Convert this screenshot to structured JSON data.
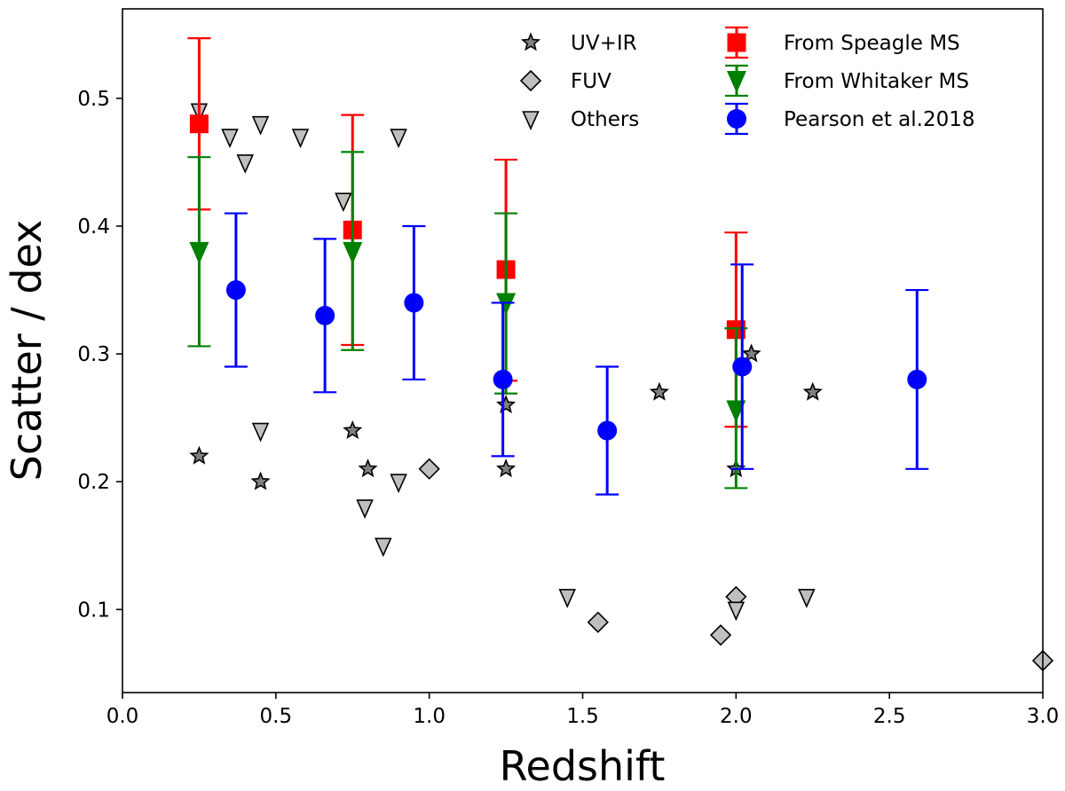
{
  "chart_data": {
    "type": "scatter",
    "title": "",
    "xlabel": "Redshift",
    "ylabel": "Scatter / dex",
    "xlim": [
      0.0,
      3.0
    ],
    "ylim": [
      0.035,
      0.57
    ],
    "xticks": [
      "0.0",
      "0.5",
      "1.0",
      "1.5",
      "2.0",
      "2.5",
      "3.0"
    ],
    "yticks": [
      "0.1",
      "0.2",
      "0.3",
      "0.4",
      "0.5"
    ],
    "legend_location": "top-right",
    "grid": false,
    "series": [
      {
        "name": "UV+IR",
        "marker": "star",
        "color": "#808080",
        "points": [
          {
            "x": 0.25,
            "y": 0.22
          },
          {
            "x": 0.45,
            "y": 0.2
          },
          {
            "x": 0.75,
            "y": 0.24
          },
          {
            "x": 0.8,
            "y": 0.21
          },
          {
            "x": 1.25,
            "y": 0.26
          },
          {
            "x": 1.25,
            "y": 0.21
          },
          {
            "x": 1.75,
            "y": 0.27
          },
          {
            "x": 2.0,
            "y": 0.21
          },
          {
            "x": 2.05,
            "y": 0.3
          },
          {
            "x": 2.25,
            "y": 0.27
          }
        ]
      },
      {
        "name": "FUV",
        "marker": "diamond",
        "color": "#bfbfbf",
        "points": [
          {
            "x": 1.0,
            "y": 0.21
          },
          {
            "x": 1.55,
            "y": 0.09
          },
          {
            "x": 1.95,
            "y": 0.08
          },
          {
            "x": 2.0,
            "y": 0.11
          },
          {
            "x": 3.0,
            "y": 0.06
          }
        ]
      },
      {
        "name": "Others",
        "marker": "triangle-down",
        "color": "#bfbfbf",
        "points": [
          {
            "x": 0.25,
            "y": 0.49
          },
          {
            "x": 0.35,
            "y": 0.47
          },
          {
            "x": 0.4,
            "y": 0.45
          },
          {
            "x": 0.45,
            "y": 0.48
          },
          {
            "x": 0.58,
            "y": 0.47
          },
          {
            "x": 0.9,
            "y": 0.47
          },
          {
            "x": 0.72,
            "y": 0.42
          },
          {
            "x": 0.45,
            "y": 0.24
          },
          {
            "x": 0.79,
            "y": 0.18
          },
          {
            "x": 0.85,
            "y": 0.15
          },
          {
            "x": 0.9,
            "y": 0.2
          },
          {
            "x": 1.45,
            "y": 0.11
          },
          {
            "x": 2.0,
            "y": 0.1
          },
          {
            "x": 2.23,
            "y": 0.11
          }
        ]
      },
      {
        "name": "From Speagle MS",
        "marker": "square",
        "color": "#ff0000",
        "points": [
          {
            "x": 0.25,
            "y": 0.48,
            "err_low": 0.413,
            "err_high": 0.547
          },
          {
            "x": 0.75,
            "y": 0.397,
            "err_low": 0.307,
            "err_high": 0.487
          },
          {
            "x": 1.25,
            "y": 0.366,
            "err_low": 0.279,
            "err_high": 0.452
          },
          {
            "x": 2.0,
            "y": 0.319,
            "err_low": 0.243,
            "err_high": 0.395
          }
        ]
      },
      {
        "name": "From Whitaker MS",
        "marker": "triangle-down",
        "color": "#008000",
        "points": [
          {
            "x": 0.25,
            "y": 0.38,
            "err_low": 0.306,
            "err_high": 0.454
          },
          {
            "x": 0.75,
            "y": 0.38,
            "err_low": 0.303,
            "err_high": 0.458
          },
          {
            "x": 1.25,
            "y": 0.34,
            "err_low": 0.269,
            "err_high": 0.41
          },
          {
            "x": 2.0,
            "y": 0.256,
            "err_low": 0.195,
            "err_high": 0.32
          }
        ]
      },
      {
        "name": "Pearson et al.2018",
        "marker": "circle",
        "color": "#0000ff",
        "points": [
          {
            "x": 0.37,
            "y": 0.35,
            "err_low": 0.29,
            "err_high": 0.41
          },
          {
            "x": 0.66,
            "y": 0.33,
            "err_low": 0.27,
            "err_high": 0.39
          },
          {
            "x": 0.95,
            "y": 0.34,
            "err_low": 0.28,
            "err_high": 0.4
          },
          {
            "x": 1.24,
            "y": 0.28,
            "err_low": 0.22,
            "err_high": 0.34
          },
          {
            "x": 1.58,
            "y": 0.24,
            "err_low": 0.19,
            "err_high": 0.29
          },
          {
            "x": 2.02,
            "y": 0.29,
            "err_low": 0.21,
            "err_high": 0.37
          },
          {
            "x": 2.59,
            "y": 0.28,
            "err_low": 0.21,
            "err_high": 0.35
          }
        ]
      }
    ]
  }
}
